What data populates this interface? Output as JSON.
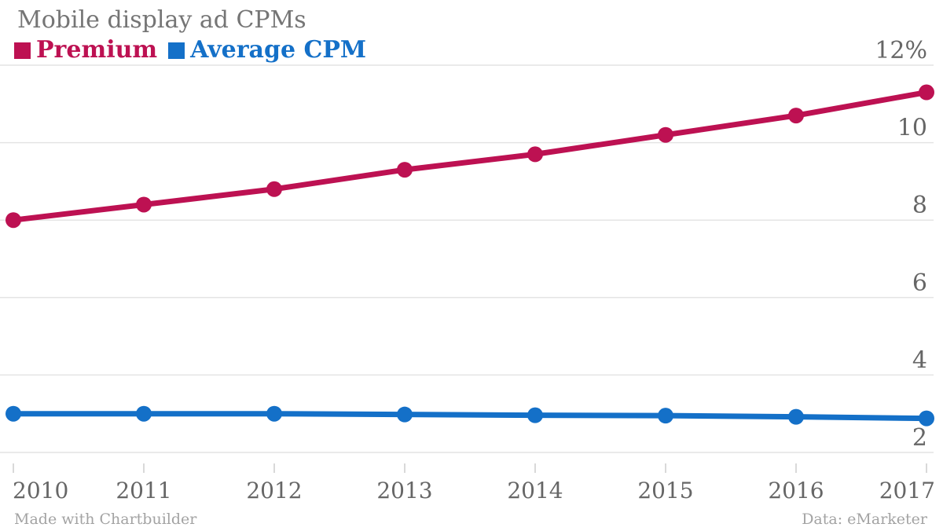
{
  "header": {
    "title": "Mobile display ad CPMs"
  },
  "legend": {
    "items": [
      {
        "label": "Premium",
        "color": "#bd1152"
      },
      {
        "label": "Average CPM",
        "color": "#1470c8"
      }
    ]
  },
  "footer": {
    "credit": "Made with Chartbuilder",
    "source": "Data: eMarketer"
  },
  "chart_data": {
    "type": "line",
    "title": "Mobile display ad CPMs",
    "categories": [
      "2010",
      "2011",
      "2012",
      "2013",
      "2014",
      "2015",
      "2016",
      "2017"
    ],
    "series": [
      {
        "name": "Premium",
        "color": "#bd1152",
        "values": [
          8.0,
          8.4,
          8.8,
          9.3,
          9.7,
          10.2,
          10.7,
          11.3
        ]
      },
      {
        "name": "Average CPM",
        "color": "#1470c8",
        "values": [
          3.0,
          3.0,
          3.0,
          2.98,
          2.96,
          2.95,
          2.92,
          2.88
        ]
      }
    ],
    "xlabel": "",
    "ylabel": "",
    "ylim": [
      2,
      12
    ],
    "yticks": [
      2,
      4,
      6,
      8,
      10,
      12
    ],
    "ytick_top_suffix": "%",
    "grid": true,
    "legend_position": "top-left",
    "colors": {
      "title_text": "#757575",
      "axis_text": "#666666",
      "gridline": "#e4e4e4",
      "tick": "#cccccc"
    }
  }
}
